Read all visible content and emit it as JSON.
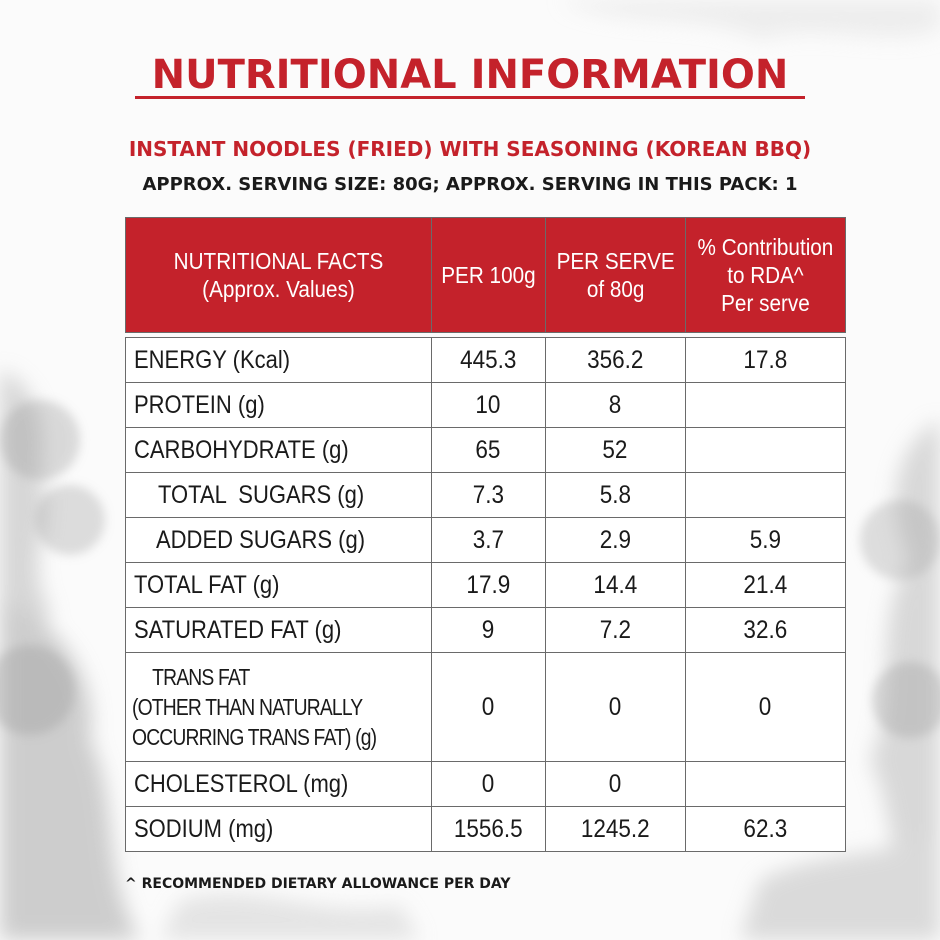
{
  "title": "NUTRITIONAL INFORMATION",
  "product": "INSTANT NOODLES (FRIED) WITH SEASONING (KOREAN BBQ)",
  "serving_info": "APPROX. SERVING SIZE: 80G; APPROX. SERVING IN THIS PACK: 1",
  "table": {
    "headers": {
      "facts_line1": "NUTRITIONAL FACTS",
      "facts_line2": "(Approx. Values)",
      "per100": "PER 100g",
      "perserve_line1": "PER SERVE",
      "perserve_line2": "of 80g",
      "rda_line1": "% Contribution",
      "rda_line2": "to RDA^",
      "rda_line3": "Per serve"
    },
    "rows": [
      {
        "label": "ENERGY (Kcal)",
        "per100": "445.3",
        "perserve": "356.2",
        "rda": "17.8"
      },
      {
        "label": "PROTEIN (g)",
        "per100": "10",
        "perserve": "8",
        "rda": ""
      },
      {
        "label": "CARBOHYDRATE (g)",
        "per100": "65",
        "perserve": "52",
        "rda": ""
      },
      {
        "label": "TOTAL  SUGARS (g)",
        "per100": "7.3",
        "perserve": "5.8",
        "rda": ""
      },
      {
        "label": "ADDED SUGARS (g)",
        "per100": "3.7",
        "perserve": "2.9",
        "rda": "5.9"
      },
      {
        "label": "TOTAL FAT (g)",
        "per100": "17.9",
        "perserve": "14.4",
        "rda": "21.4"
      },
      {
        "label": "SATURATED FAT (g)",
        "per100": "9",
        "perserve": "7.2",
        "rda": "32.6"
      },
      {
        "label_line1": "TRANS FAT",
        "label_line2": "(OTHER THAN NATURALLY",
        "label_line3": "OCCURRING TRANS FAT) (g)",
        "per100": "0",
        "perserve": "0",
        "rda": "0"
      },
      {
        "label": "CHOLESTEROL (mg)",
        "per100": "0",
        "perserve": "0",
        "rda": ""
      },
      {
        "label": "SODIUM (mg)",
        "per100": "1556.5",
        "perserve": "1245.2",
        "rda": "62.3"
      }
    ]
  },
  "footnote": "^ RECOMMENDED DIETARY ALLOWANCE PER DAY",
  "colors": {
    "accent": "#c4222b",
    "text": "#1a1a1a"
  }
}
